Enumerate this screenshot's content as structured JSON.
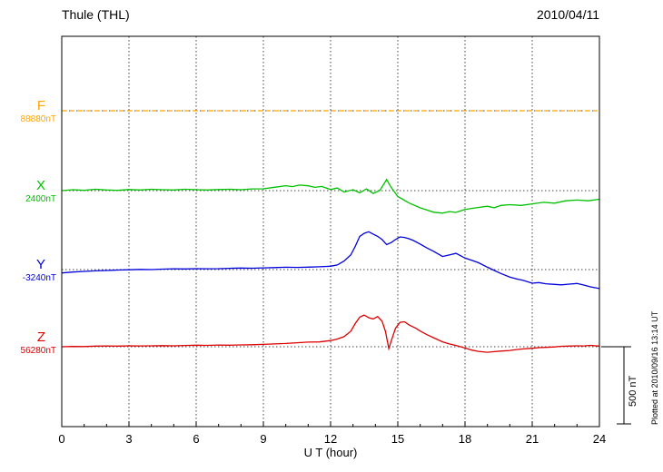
{
  "header": {
    "title": "Thule (THL)",
    "date": "2010/04/11"
  },
  "axis": {
    "xlabel": "U T (hour)",
    "tick_labels": [
      "0",
      "3",
      "6",
      "9",
      "12",
      "15",
      "18",
      "21",
      "24"
    ],
    "xmin": 0,
    "xmax": 24
  },
  "scalebar": {
    "label": "500 nT",
    "span_nT": 500
  },
  "plot_note": "Plotted at 2010/09/16 13:14 UT",
  "series_labels": [
    {
      "name": "F",
      "value": "88880nT",
      "color": "#FFA500"
    },
    {
      "name": "X",
      "value": "2400nT",
      "color": "#00C000"
    },
    {
      "name": "Y",
      "value": "-3240nT",
      "color": "#0000DD"
    },
    {
      "name": "Z",
      "value": "56280nT",
      "color": "#DD0000"
    }
  ],
  "chart_data": {
    "type": "line",
    "title": "Thule (THL) magnetogram",
    "date": "2010/04/11",
    "xlabel": "U T (hour)",
    "x_range_hours": [
      0,
      24
    ],
    "x_ticks": [
      0,
      3,
      6,
      9,
      12,
      15,
      18,
      21,
      24
    ],
    "grid": "dotted",
    "y_scale": {
      "bar_nT": 500
    },
    "series": [
      {
        "name": "F",
        "baseline_value": "88880nT",
        "color": "#FFA500",
        "line_style": "dashed",
        "points_hour_nT": [
          [
            0,
            0
          ],
          [
            24,
            0
          ]
        ]
      },
      {
        "name": "X",
        "baseline_value": "2400nT",
        "color": "#00C000",
        "line_style": "solid",
        "points_hour_nT": [
          [
            0,
            0
          ],
          [
            0.5,
            6
          ],
          [
            1,
            2
          ],
          [
            1.5,
            9
          ],
          [
            2,
            4
          ],
          [
            2.5,
            2
          ],
          [
            3,
            7
          ],
          [
            3.5,
            4
          ],
          [
            4,
            9
          ],
          [
            4.5,
            6
          ],
          [
            5,
            4
          ],
          [
            5.5,
            9
          ],
          [
            6,
            6
          ],
          [
            6.5,
            4
          ],
          [
            7,
            7
          ],
          [
            7.5,
            9
          ],
          [
            8,
            6
          ],
          [
            8.5,
            11
          ],
          [
            9,
            12
          ],
          [
            9.5,
            22
          ],
          [
            10,
            32
          ],
          [
            10.3,
            26
          ],
          [
            10.6,
            36
          ],
          [
            11,
            31
          ],
          [
            11.3,
            21
          ],
          [
            11.6,
            27
          ],
          [
            12,
            7
          ],
          [
            12.3,
            17
          ],
          [
            12.6,
            -9
          ],
          [
            13,
            6
          ],
          [
            13.3,
            -14
          ],
          [
            13.6,
            11
          ],
          [
            13.9,
            -18
          ],
          [
            14.2,
            2
          ],
          [
            14.5,
            72
          ],
          [
            14.7,
            22
          ],
          [
            15,
            -38
          ],
          [
            15.5,
            -80
          ],
          [
            16,
            -112
          ],
          [
            16.3,
            -126
          ],
          [
            16.6,
            -140
          ],
          [
            17,
            -146
          ],
          [
            17.3,
            -136
          ],
          [
            17.6,
            -141
          ],
          [
            18,
            -122
          ],
          [
            18.5,
            -111
          ],
          [
            19,
            -101
          ],
          [
            19.3,
            -111
          ],
          [
            19.6,
            -96
          ],
          [
            20,
            -91
          ],
          [
            20.5,
            -96
          ],
          [
            21,
            -86
          ],
          [
            21.5,
            -76
          ],
          [
            22,
            -81
          ],
          [
            22.5,
            -66
          ],
          [
            23,
            -61
          ],
          [
            23.5,
            -66
          ],
          [
            24,
            -56
          ]
        ]
      },
      {
        "name": "Y",
        "baseline_value": "-3240nT",
        "color": "#0000DD",
        "line_style": "solid",
        "points_hour_nT": [
          [
            0,
            -22
          ],
          [
            0.5,
            -16
          ],
          [
            1,
            -12
          ],
          [
            1.5,
            -8
          ],
          [
            2,
            -6
          ],
          [
            2.5,
            -3
          ],
          [
            3,
            -1
          ],
          [
            3.5,
            1
          ],
          [
            4,
            0
          ],
          [
            4.5,
            3
          ],
          [
            5,
            5
          ],
          [
            5.5,
            4
          ],
          [
            6,
            6
          ],
          [
            6.5,
            5
          ],
          [
            7,
            6
          ],
          [
            7.5,
            8
          ],
          [
            8,
            10
          ],
          [
            8.5,
            9
          ],
          [
            9,
            11
          ],
          [
            9.5,
            13
          ],
          [
            10,
            15
          ],
          [
            10.5,
            14
          ],
          [
            11,
            16
          ],
          [
            11.5,
            18
          ],
          [
            12,
            22
          ],
          [
            12.3,
            30
          ],
          [
            12.6,
            55
          ],
          [
            12.9,
            95
          ],
          [
            13.1,
            150
          ],
          [
            13.3,
            215
          ],
          [
            13.5,
            235
          ],
          [
            13.7,
            245
          ],
          [
            13.9,
            230
          ],
          [
            14.1,
            215
          ],
          [
            14.3,
            195
          ],
          [
            14.5,
            162
          ],
          [
            14.7,
            175
          ],
          [
            14.9,
            195
          ],
          [
            15.1,
            212
          ],
          [
            15.3,
            208
          ],
          [
            15.5,
            200
          ],
          [
            15.7,
            188
          ],
          [
            16,
            165
          ],
          [
            16.3,
            140
          ],
          [
            16.6,
            118
          ],
          [
            17,
            85
          ],
          [
            17.3,
            95
          ],
          [
            17.6,
            105
          ],
          [
            18,
            75
          ],
          [
            18.3,
            60
          ],
          [
            18.6,
            45
          ],
          [
            19,
            15
          ],
          [
            19.3,
            -5
          ],
          [
            19.6,
            -25
          ],
          [
            20,
            -48
          ],
          [
            20.3,
            -60
          ],
          [
            20.6,
            -70
          ],
          [
            21,
            -88
          ],
          [
            21.3,
            -84
          ],
          [
            21.6,
            -92
          ],
          [
            22,
            -96
          ],
          [
            22.3,
            -99
          ],
          [
            22.6,
            -95
          ],
          [
            23,
            -90
          ],
          [
            23.3,
            -100
          ],
          [
            23.6,
            -112
          ],
          [
            24,
            -123
          ]
        ]
      },
      {
        "name": "Z",
        "baseline_value": "56280nT",
        "color": "#DD0000",
        "line_style": "solid",
        "points_hour_nT": [
          [
            0,
            0
          ],
          [
            0.5,
            2
          ],
          [
            1,
            1
          ],
          [
            1.5,
            4
          ],
          [
            2,
            5
          ],
          [
            2.5,
            4
          ],
          [
            3,
            6
          ],
          [
            3.5,
            5
          ],
          [
            4,
            6
          ],
          [
            4.5,
            7
          ],
          [
            5,
            6
          ],
          [
            5.5,
            8
          ],
          [
            6,
            10
          ],
          [
            6.5,
            9
          ],
          [
            7,
            11
          ],
          [
            7.5,
            10
          ],
          [
            8,
            12
          ],
          [
            8.5,
            13
          ],
          [
            9,
            15
          ],
          [
            9.5,
            18
          ],
          [
            10,
            21
          ],
          [
            10.5,
            26
          ],
          [
            11,
            30
          ],
          [
            11.5,
            31
          ],
          [
            12,
            40
          ],
          [
            12.3,
            50
          ],
          [
            12.6,
            65
          ],
          [
            12.9,
            100
          ],
          [
            13.1,
            150
          ],
          [
            13.3,
            192
          ],
          [
            13.5,
            205
          ],
          [
            13.7,
            188
          ],
          [
            13.9,
            180
          ],
          [
            14.1,
            196
          ],
          [
            14.3,
            165
          ],
          [
            14.45,
            100
          ],
          [
            14.6,
            -12
          ],
          [
            14.75,
            55
          ],
          [
            14.9,
            120
          ],
          [
            15.1,
            158
          ],
          [
            15.3,
            162
          ],
          [
            15.5,
            142
          ],
          [
            15.8,
            120
          ],
          [
            16,
            102
          ],
          [
            16.3,
            78
          ],
          [
            16.6,
            58
          ],
          [
            17,
            32
          ],
          [
            17.3,
            18
          ],
          [
            17.6,
            8
          ],
          [
            18,
            -8
          ],
          [
            18.3,
            -22
          ],
          [
            18.6,
            -30
          ],
          [
            19,
            -36
          ],
          [
            19.3,
            -32
          ],
          [
            19.6,
            -28
          ],
          [
            20,
            -24
          ],
          [
            20.3,
            -18
          ],
          [
            20.6,
            -14
          ],
          [
            21,
            -10
          ],
          [
            21.3,
            -6
          ],
          [
            21.6,
            -4
          ],
          [
            22,
            -1
          ],
          [
            22.3,
            3
          ],
          [
            22.6,
            4
          ],
          [
            23,
            6
          ],
          [
            23.3,
            5
          ],
          [
            23.6,
            9
          ],
          [
            24,
            4
          ]
        ]
      }
    ]
  }
}
